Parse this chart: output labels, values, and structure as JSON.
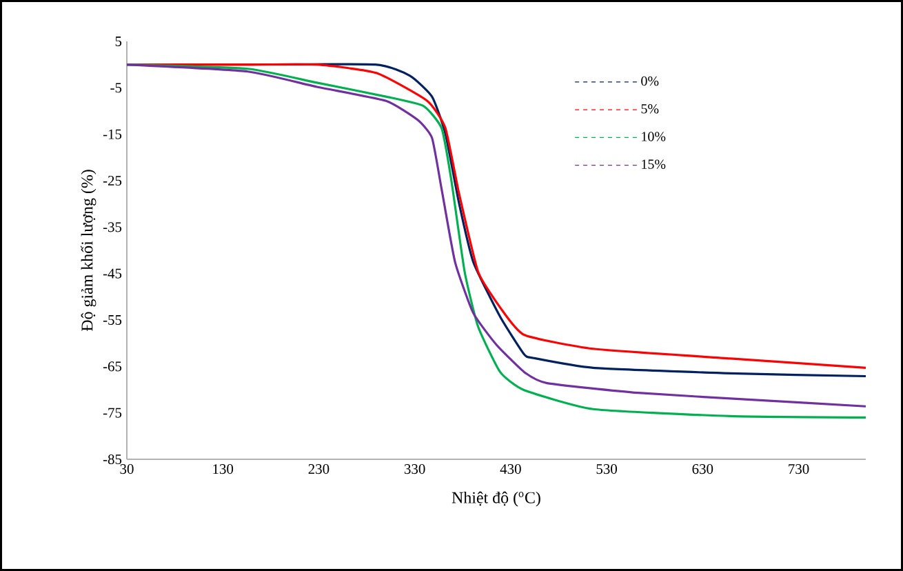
{
  "chart_data": {
    "type": "line",
    "xlabel": "Nhiệt độ ($^{o}$C)",
    "ylabel": "Độ giảm khối lượng (%)",
    "xlim": [
      30,
      800
    ],
    "ylim": [
      -85,
      5
    ],
    "xticks": [
      30,
      130,
      230,
      330,
      430,
      530,
      630,
      730
    ],
    "yticks": [
      5,
      -5,
      -15,
      -25,
      -35,
      -45,
      -55,
      -65,
      -75,
      -85
    ],
    "grid": false,
    "legend": "top right",
    "line_style": "solid",
    "marker": "none",
    "series": [
      {
        "name": "0%",
        "color": "#002060",
        "x": [
          30,
          150,
          289,
          325,
          348,
          362,
          376,
          391,
          419,
          444,
          454,
          516,
          659,
          800
        ],
        "values": [
          0,
          0,
          0,
          -2.4,
          -6.9,
          -14.9,
          -29.7,
          -42.5,
          -54.3,
          -62.4,
          -63.2,
          -65.3,
          -66.5,
          -67.1
        ]
      },
      {
        "name": "5%",
        "color": "#ff0000",
        "x": [
          30,
          150,
          228,
          290,
          343,
          362,
          376,
          396,
          419,
          444,
          516,
          659,
          800
        ],
        "values": [
          0,
          0,
          0,
          -1.8,
          -7.8,
          -13.7,
          -27.6,
          -44.6,
          -52.3,
          -58.2,
          -61.2,
          -63.3,
          -65.3
        ]
      },
      {
        "name": "10%",
        "color": "#00b050",
        "x": [
          30,
          156,
          228,
          300,
          339,
          358,
          368,
          382,
          396,
          419,
          444,
          516,
          659,
          800
        ],
        "values": [
          0,
          -0.9,
          -3.9,
          -6.9,
          -8.9,
          -13.7,
          -24.7,
          -44.6,
          -56.4,
          -66.2,
          -70.1,
          -74.2,
          -75.7,
          -76
        ]
      },
      {
        "name": "15%",
        "color": "#7030a0",
        "x": [
          30,
          156,
          228,
          300,
          333,
          348,
          358,
          372,
          391,
          415,
          444,
          468,
          563,
          684,
          800
        ],
        "values": [
          0,
          -1.5,
          -4.8,
          -7.8,
          -11.9,
          -15.8,
          -26.8,
          -42.5,
          -53.5,
          -60.3,
          -66.2,
          -68.6,
          -70.7,
          -72.2,
          -73.6
        ]
      }
    ]
  }
}
